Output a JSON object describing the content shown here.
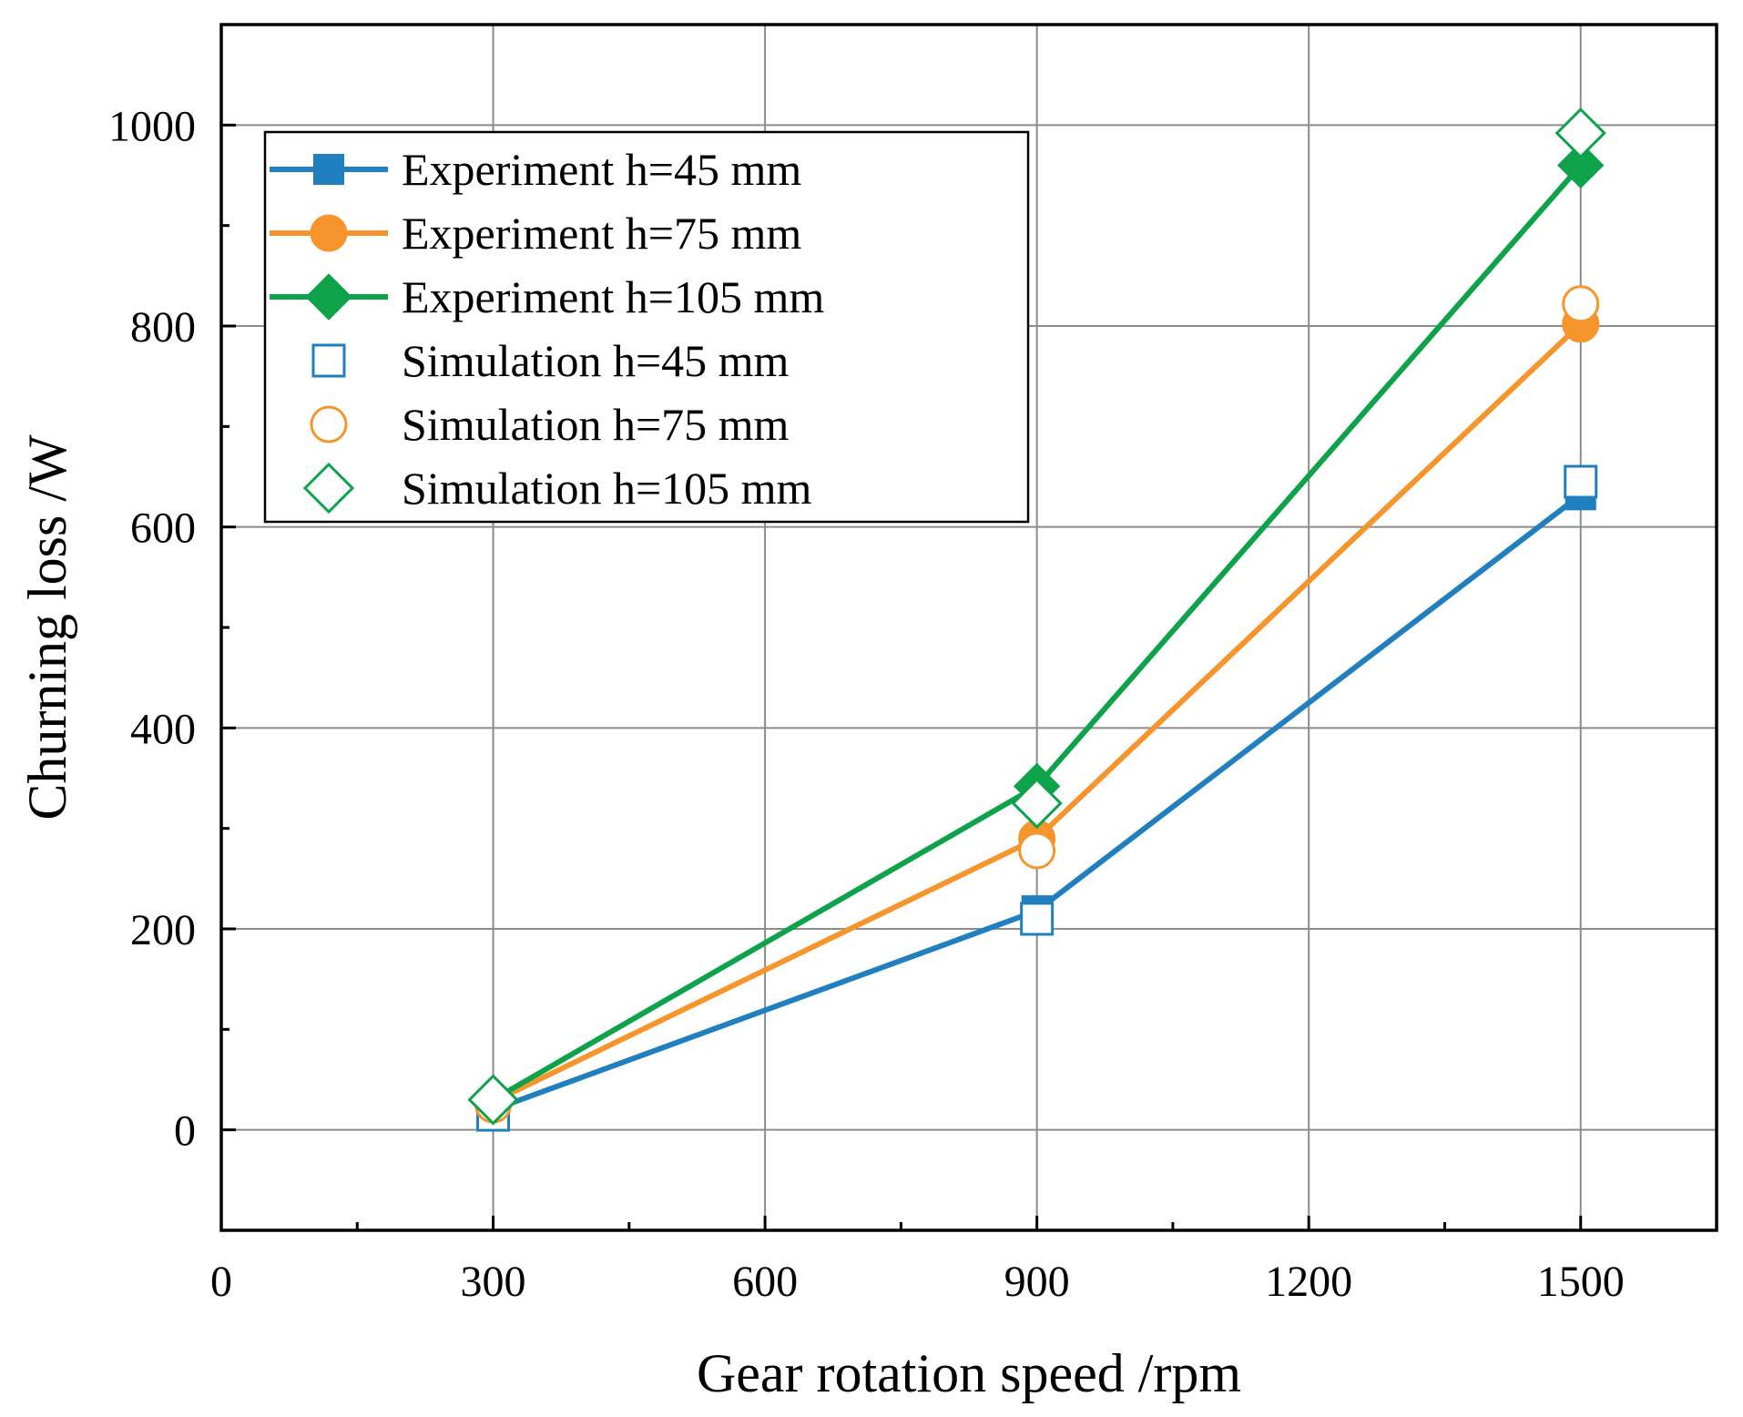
{
  "chart_data": {
    "type": "line",
    "xlabel": "Gear rotation speed /rpm",
    "ylabel": "Churning loss /W",
    "xlim": [
      0,
      1650
    ],
    "ylim": [
      -100,
      1100
    ],
    "x_ticks": [
      0,
      300,
      600,
      900,
      1200,
      1500
    ],
    "y_ticks": [
      0,
      200,
      400,
      600,
      800,
      1000
    ],
    "x_minor_ticks": [
      150,
      450,
      750,
      1050,
      1350
    ],
    "y_minor_ticks": [
      100,
      300,
      500,
      700,
      900
    ],
    "grid": true,
    "legend_position": "upper-left",
    "series": [
      {
        "name": "Experiment h=45 mm",
        "kind": "experiment",
        "marker": "square",
        "color": "#1f7fbf",
        "x": [
          300,
          900,
          1500
        ],
        "y": [
          20,
          218,
          632
        ]
      },
      {
        "name": "Experiment h=75 mm",
        "kind": "experiment",
        "marker": "circle",
        "color": "#f7952d",
        "x": [
          300,
          900,
          1500
        ],
        "y": [
          28,
          290,
          802
        ]
      },
      {
        "name": "Experiment h=105 mm",
        "kind": "experiment",
        "marker": "diamond",
        "color": "#0ea34b",
        "x": [
          300,
          900,
          1500
        ],
        "y": [
          30,
          342,
          960
        ]
      },
      {
        "name": "Simulation h=45 mm",
        "kind": "simulation",
        "marker": "square",
        "color": "#1f7fbf",
        "x": [
          300,
          900,
          1500
        ],
        "y": [
          15,
          210,
          645
        ]
      },
      {
        "name": "Simulation h=75 mm",
        "kind": "simulation",
        "marker": "circle",
        "color": "#f7952d",
        "x": [
          300,
          900,
          1500
        ],
        "y": [
          25,
          278,
          822
        ]
      },
      {
        "name": "Simulation h=105 mm",
        "kind": "simulation",
        "marker": "diamond",
        "color": "#0ea34b",
        "x": [
          300,
          900,
          1500
        ],
        "y": [
          30,
          325,
          992
        ]
      }
    ]
  }
}
